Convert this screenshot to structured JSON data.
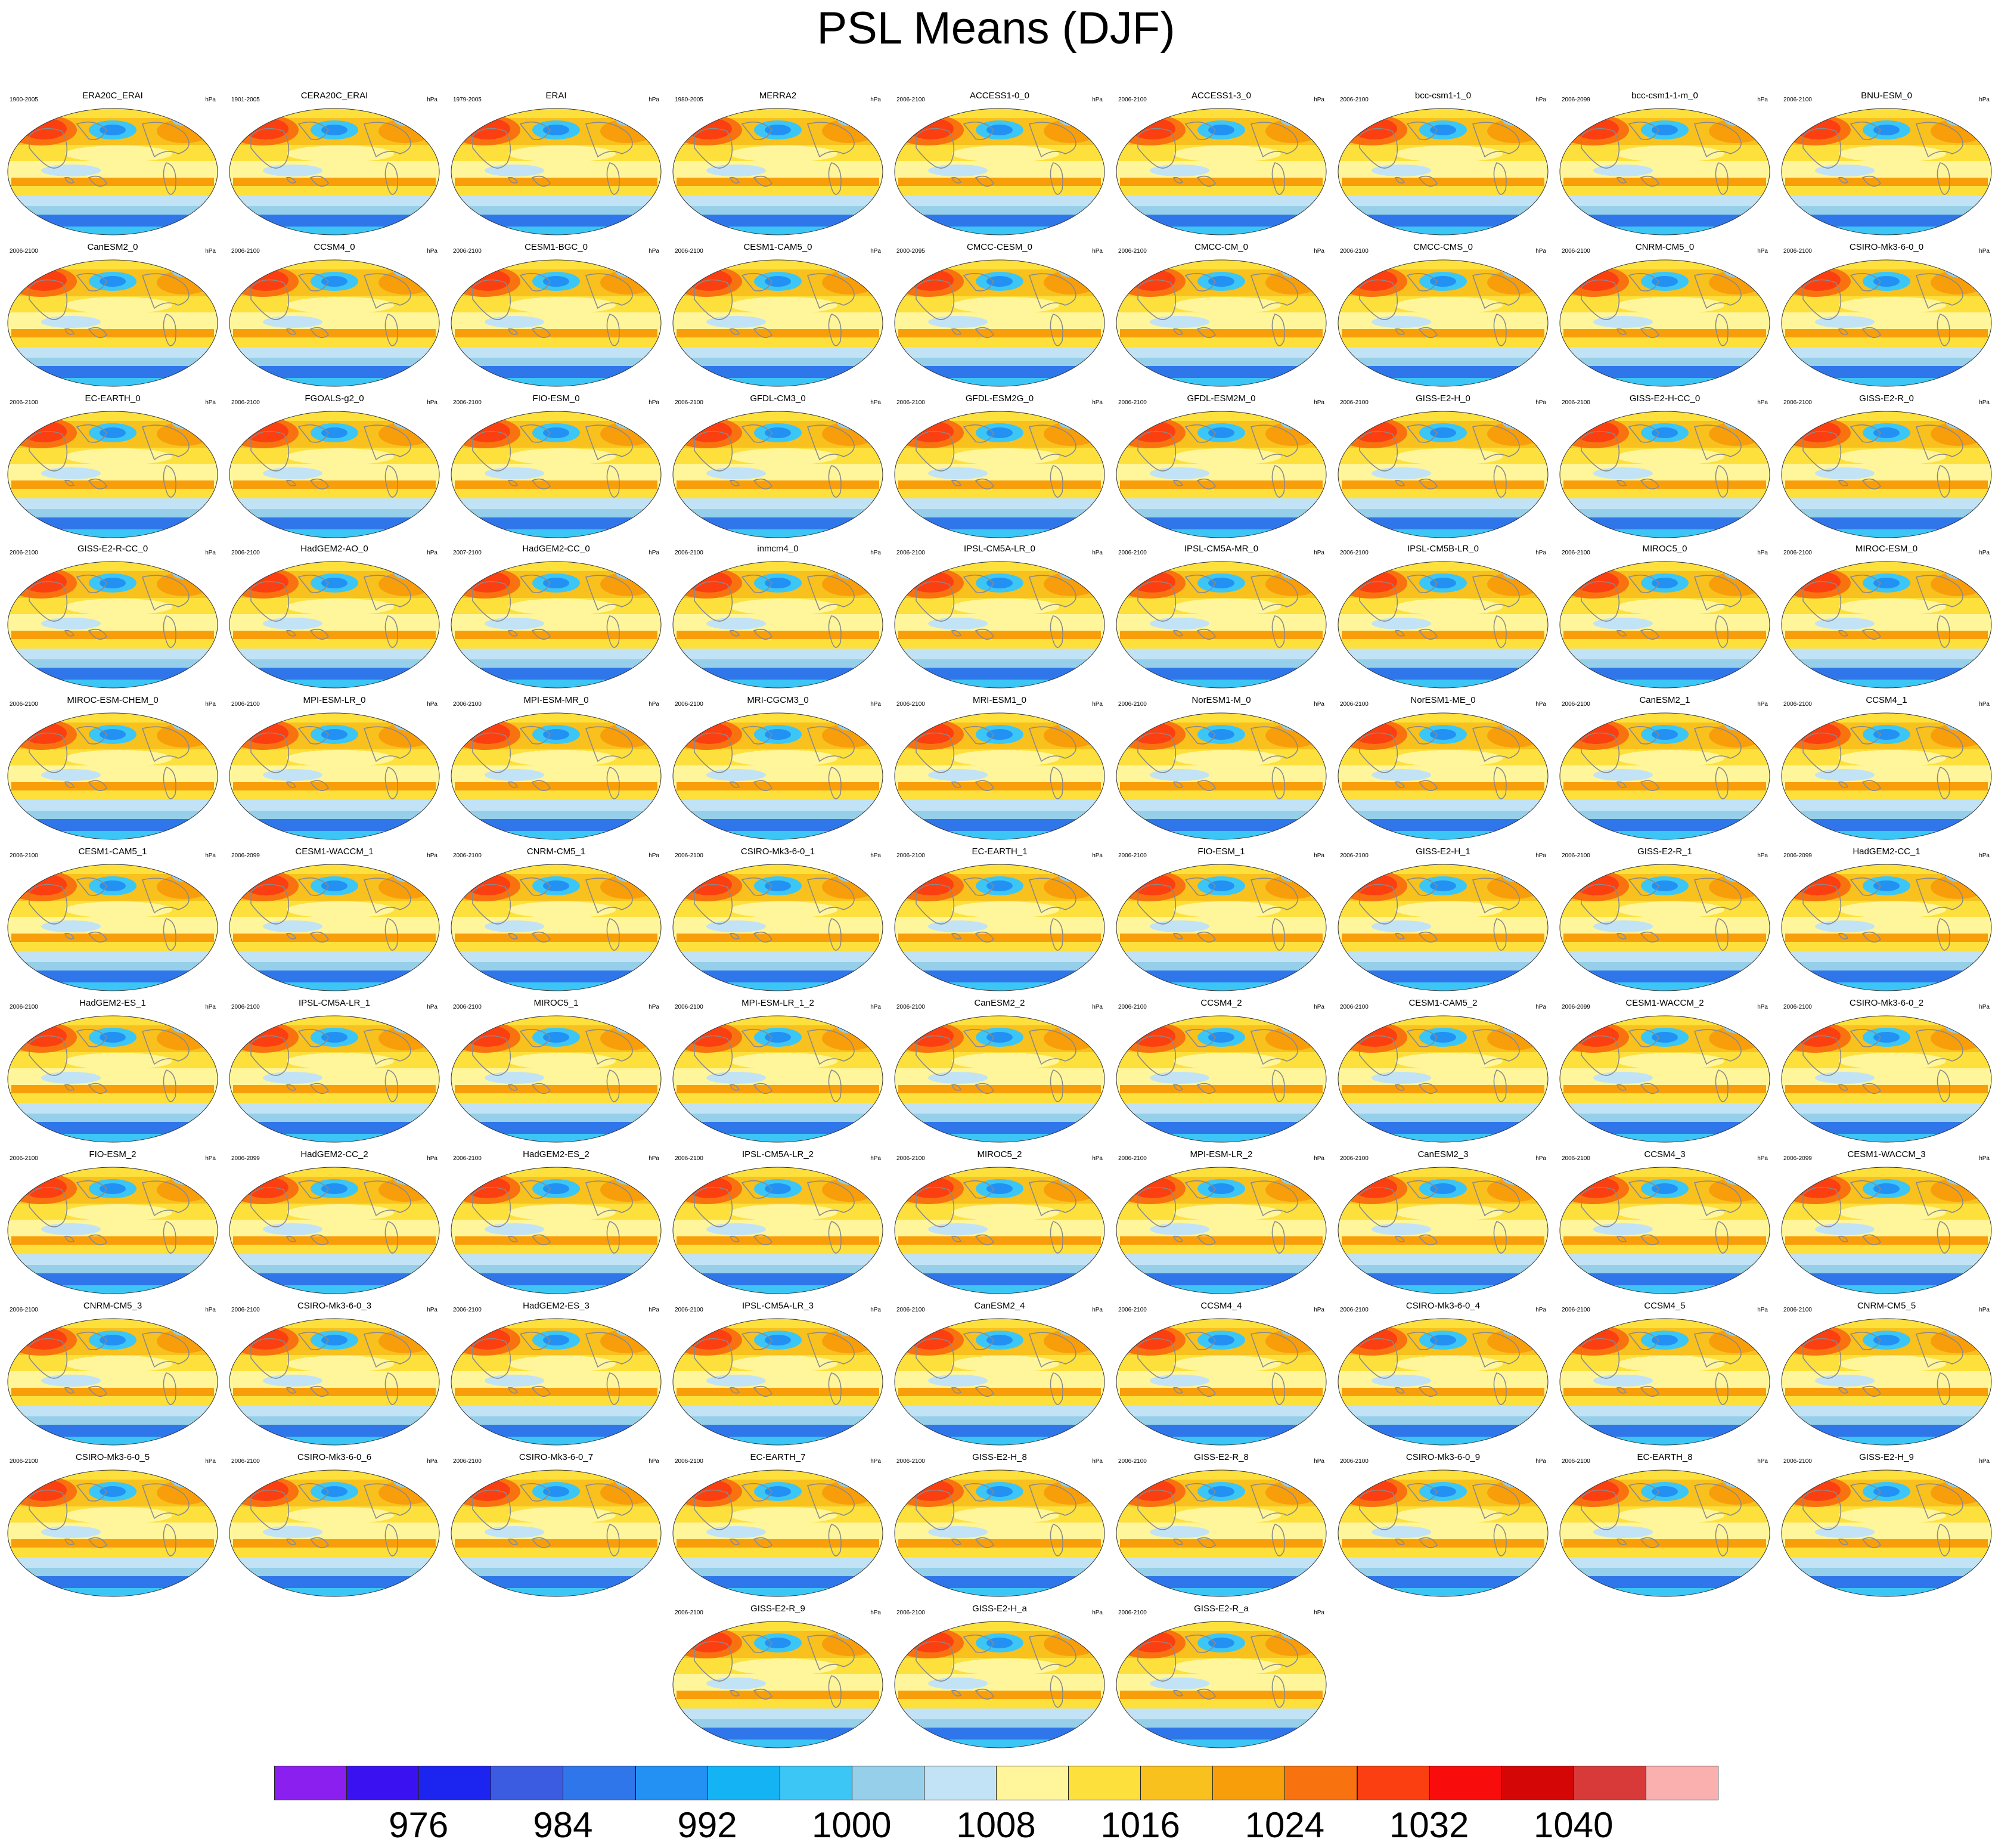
{
  "title": "PSL Means (DJF)",
  "unit": "hPa",
  "colorbar": {
    "colors": [
      "#8a1ff0",
      "#3a12f2",
      "#1c25f0",
      "#3b5be0",
      "#2f76ea",
      "#2291f3",
      "#13b3f4",
      "#3cc6f6",
      "#95cfe9",
      "#c2e3f5",
      "#fff59a",
      "#fde03c",
      "#f8c11e",
      "#f99e0b",
      "#f97210",
      "#fc3f10",
      "#f80c0c",
      "#d40606",
      "#d83a3a",
      "#fbb0b0"
    ],
    "tick_labels": [
      "976",
      "984",
      "992",
      "1000",
      "1008",
      "1016",
      "1024",
      "1032",
      "1040"
    ]
  },
  "panels": [
    {
      "name": "ERA20C_ERAI",
      "years": "1900-2005"
    },
    {
      "name": "CERA20C_ERAI",
      "years": "1901-2005"
    },
    {
      "name": "ERAI",
      "years": "1979-2005"
    },
    {
      "name": "MERRA2",
      "years": "1980-2005"
    },
    {
      "name": "ACCESS1-0_0",
      "years": "2006-2100"
    },
    {
      "name": "ACCESS1-3_0",
      "years": "2006-2100"
    },
    {
      "name": "bcc-csm1-1_0",
      "years": "2006-2100"
    },
    {
      "name": "bcc-csm1-1-m_0",
      "years": "2006-2099"
    },
    {
      "name": "BNU-ESM_0",
      "years": "2006-2100"
    },
    {
      "name": "CanESM2_0",
      "years": "2006-2100"
    },
    {
      "name": "CCSM4_0",
      "years": "2006-2100"
    },
    {
      "name": "CESM1-BGC_0",
      "years": "2006-2100"
    },
    {
      "name": "CESM1-CAM5_0",
      "years": "2006-2100"
    },
    {
      "name": "CMCC-CESM_0",
      "years": "2000-2095"
    },
    {
      "name": "CMCC-CM_0",
      "years": "2006-2100"
    },
    {
      "name": "CMCC-CMS_0",
      "years": "2006-2100"
    },
    {
      "name": "CNRM-CM5_0",
      "years": "2006-2100"
    },
    {
      "name": "CSIRO-Mk3-6-0_0",
      "years": "2006-2100"
    },
    {
      "name": "EC-EARTH_0",
      "years": "2006-2100"
    },
    {
      "name": "FGOALS-g2_0",
      "years": "2006-2100"
    },
    {
      "name": "FIO-ESM_0",
      "years": "2006-2100"
    },
    {
      "name": "GFDL-CM3_0",
      "years": "2006-2100"
    },
    {
      "name": "GFDL-ESM2G_0",
      "years": "2006-2100"
    },
    {
      "name": "GFDL-ESM2M_0",
      "years": "2006-2100"
    },
    {
      "name": "GISS-E2-H_0",
      "years": "2006-2100"
    },
    {
      "name": "GISS-E2-H-CC_0",
      "years": "2006-2100"
    },
    {
      "name": "GISS-E2-R_0",
      "years": "2006-2100"
    },
    {
      "name": "GISS-E2-R-CC_0",
      "years": "2006-2100"
    },
    {
      "name": "HadGEM2-AO_0",
      "years": "2006-2100"
    },
    {
      "name": "HadGEM2-CC_0",
      "years": "2007-2100"
    },
    {
      "name": "inmcm4_0",
      "years": "2006-2100"
    },
    {
      "name": "IPSL-CM5A-LR_0",
      "years": "2006-2100"
    },
    {
      "name": "IPSL-CM5A-MR_0",
      "years": "2006-2100"
    },
    {
      "name": "IPSL-CM5B-LR_0",
      "years": "2006-2100"
    },
    {
      "name": "MIROC5_0",
      "years": "2006-2100"
    },
    {
      "name": "MIROC-ESM_0",
      "years": "2006-2100"
    },
    {
      "name": "MIROC-ESM-CHEM_0",
      "years": "2006-2100"
    },
    {
      "name": "MPI-ESM-LR_0",
      "years": "2006-2100"
    },
    {
      "name": "MPI-ESM-MR_0",
      "years": "2006-2100"
    },
    {
      "name": "MRI-CGCM3_0",
      "years": "2006-2100"
    },
    {
      "name": "MRI-ESM1_0",
      "years": "2006-2100"
    },
    {
      "name": "NorESM1-M_0",
      "years": "2006-2100"
    },
    {
      "name": "NorESM1-ME_0",
      "years": "2006-2100"
    },
    {
      "name": "CanESM2_1",
      "years": "2006-2100"
    },
    {
      "name": "CCSM4_1",
      "years": "2006-2100"
    },
    {
      "name": "CESM1-CAM5_1",
      "years": "2006-2100"
    },
    {
      "name": "CESM1-WACCM_1",
      "years": "2006-2099"
    },
    {
      "name": "CNRM-CM5_1",
      "years": "2006-2100"
    },
    {
      "name": "CSIRO-Mk3-6-0_1",
      "years": "2006-2100"
    },
    {
      "name": "EC-EARTH_1",
      "years": "2006-2100"
    },
    {
      "name": "FIO-ESM_1",
      "years": "2006-2100"
    },
    {
      "name": "GISS-E2-H_1",
      "years": "2006-2100"
    },
    {
      "name": "GISS-E2-R_1",
      "years": "2006-2100"
    },
    {
      "name": "HadGEM2-CC_1",
      "years": "2006-2099"
    },
    {
      "name": "HadGEM2-ES_1",
      "years": "2006-2100"
    },
    {
      "name": "IPSL-CM5A-LR_1",
      "years": "2006-2100"
    },
    {
      "name": "MIROC5_1",
      "years": "2006-2100"
    },
    {
      "name": "MPI-ESM-LR_1_2",
      "years": "2006-2100"
    },
    {
      "name": "CanESM2_2",
      "years": "2006-2100"
    },
    {
      "name": "CCSM4_2",
      "years": "2006-2100"
    },
    {
      "name": "CESM1-CAM5_2",
      "years": "2006-2100"
    },
    {
      "name": "CESM1-WACCM_2",
      "years": "2006-2099"
    },
    {
      "name": "CSIRO-Mk3-6-0_2",
      "years": "2006-2100"
    },
    {
      "name": "FIO-ESM_2",
      "years": "2006-2100"
    },
    {
      "name": "HadGEM2-CC_2",
      "years": "2006-2099"
    },
    {
      "name": "HadGEM2-ES_2",
      "years": "2006-2100"
    },
    {
      "name": "IPSL-CM5A-LR_2",
      "years": "2006-2100"
    },
    {
      "name": "MIROC5_2",
      "years": "2006-2100"
    },
    {
      "name": "MPI-ESM-LR_2",
      "years": "2006-2100"
    },
    {
      "name": "CanESM2_3",
      "years": "2006-2100"
    },
    {
      "name": "CCSM4_3",
      "years": "2006-2100"
    },
    {
      "name": "CESM1-WACCM_3",
      "years": "2006-2099"
    },
    {
      "name": "CNRM-CM5_3",
      "years": "2006-2100"
    },
    {
      "name": "CSIRO-Mk3-6-0_3",
      "years": "2006-2100"
    },
    {
      "name": "HadGEM2-ES_3",
      "years": "2006-2100"
    },
    {
      "name": "IPSL-CM5A-LR_3",
      "years": "2006-2100"
    },
    {
      "name": "CanESM2_4",
      "years": "2006-2100"
    },
    {
      "name": "CCSM4_4",
      "years": "2006-2100"
    },
    {
      "name": "CSIRO-Mk3-6-0_4",
      "years": "2006-2100"
    },
    {
      "name": "CCSM4_5",
      "years": "2006-2100"
    },
    {
      "name": "CNRM-CM5_5",
      "years": "2006-2100"
    },
    {
      "name": "CSIRO-Mk3-6-0_5",
      "years": "2006-2100"
    },
    {
      "name": "CSIRO-Mk3-6-0_6",
      "years": "2006-2100"
    },
    {
      "name": "CSIRO-Mk3-6-0_7",
      "years": "2006-2100"
    },
    {
      "name": "EC-EARTH_7",
      "years": "2006-2100"
    },
    {
      "name": "GISS-E2-H_8",
      "years": "2006-2100"
    },
    {
      "name": "GISS-E2-R_8",
      "years": "2006-2100"
    },
    {
      "name": "CSIRO-Mk3-6-0_9",
      "years": "2006-2100"
    },
    {
      "name": "EC-EARTH_8",
      "years": "2006-2100"
    },
    {
      "name": "GISS-E2-H_9",
      "years": "2006-2100"
    },
    {
      "name": "GISS-E2-R_9",
      "years": "2006-2100"
    },
    {
      "name": "GISS-E2-H_a",
      "years": "2006-2100"
    },
    {
      "name": "GISS-E2-R_a",
      "years": "2006-2100"
    }
  ]
}
